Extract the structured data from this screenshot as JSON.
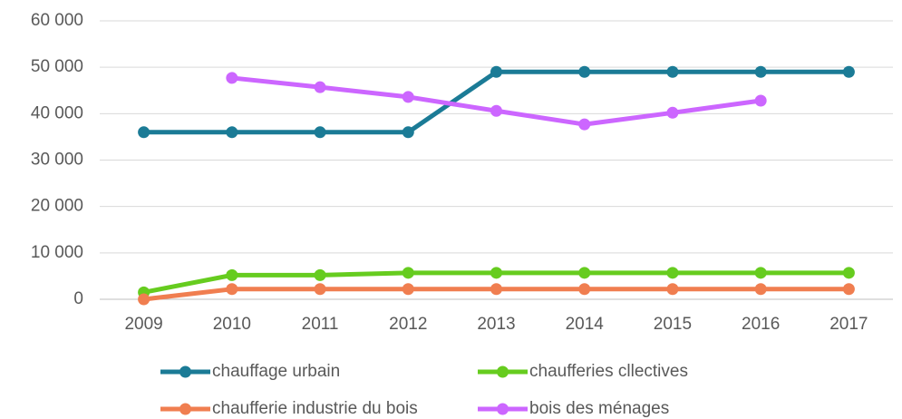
{
  "chart_data": {
    "type": "line",
    "categories": [
      "2009",
      "2010",
      "2011",
      "2012",
      "2013",
      "2014",
      "2015",
      "2016",
      "2017"
    ],
    "series": [
      {
        "name": "chauffage urbain",
        "color": "#1b7b96",
        "values": [
          36000,
          36000,
          36000,
          36000,
          49000,
          49000,
          49000,
          49000,
          49000
        ]
      },
      {
        "name": "chaufferies cllectives",
        "color": "#66cc1f",
        "values": [
          1500,
          5200,
          5200,
          5700,
          5700,
          5700,
          5700,
          5700,
          5700
        ]
      },
      {
        "name": "chaufferie industrie du bois",
        "color": "#f07e50",
        "values": [
          0,
          2200,
          2200,
          2200,
          2200,
          2200,
          2200,
          2200,
          2200
        ]
      },
      {
        "name": "bois des ménages",
        "color": "#cc66ff",
        "values": [
          null,
          47700,
          45700,
          43600,
          40600,
          37700,
          40200,
          42800,
          null
        ]
      }
    ],
    "ylim": [
      0,
      60000
    ],
    "yticks": [
      {
        "value": 0,
        "label": "0"
      },
      {
        "value": 10000,
        "label": "10 000"
      },
      {
        "value": 20000,
        "label": "20 000"
      },
      {
        "value": 30000,
        "label": "30 000"
      },
      {
        "value": 40000,
        "label": "40 000"
      },
      {
        "value": 50000,
        "label": "50 000"
      },
      {
        "value": 60000,
        "label": "60 000"
      }
    ],
    "grid": true,
    "legend": "bottom"
  }
}
